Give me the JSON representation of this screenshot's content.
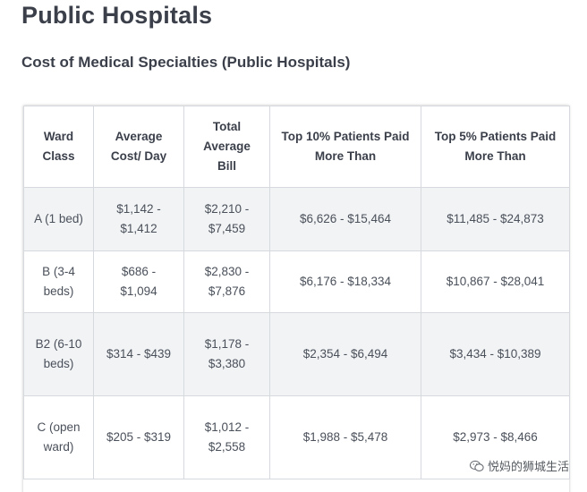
{
  "page_title": "Public Hospitals",
  "section_title": "Cost of Medical Specialties (Public Hospitals)",
  "table": {
    "headers": [
      "Ward Class",
      "Average Cost/ Day",
      "Total Average Bill",
      "Top 10% Patients Paid More Than",
      "Top 5% Patients Paid More Than"
    ],
    "rows": [
      [
        "A (1 bed)",
        "$1,142 - $1,412",
        "$2,210 - $7,459",
        "$6,626 - $15,464",
        "$11,485 - $24,873"
      ],
      [
        "B (3-4 beds)",
        "$686 - $1,094",
        "$2,830 - $7,876",
        "$6,176 - $18,334",
        "$10,867 - $28,041"
      ],
      [
        "B2 (6-10 beds)",
        "$314 - $439",
        "$1,178 - $3,380",
        "$2,354 - $6,494",
        "$3,434 - $10,389"
      ],
      [
        "C (open ward)",
        "$205 - $319",
        "$1,012 - $2,558",
        "$1,988 - $5,478",
        "$2,973 - $8,466"
      ]
    ]
  },
  "watermark": {
    "text": "悦妈的狮城生活",
    "icon": "wechat-icon"
  }
}
